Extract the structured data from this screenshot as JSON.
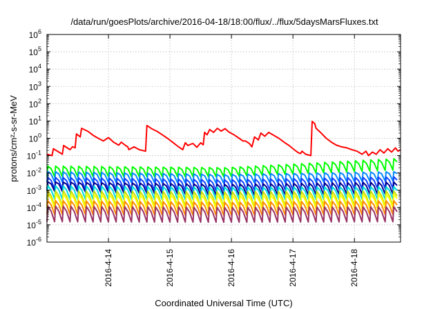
{
  "chart_data": {
    "type": "line",
    "title": "/data/run/goesPlots/archive/2016-04-18/18:00/flux/../flux/5daysMarsFluxes.txt",
    "xlabel": "Coordinated Universal Time (UTC)",
    "ylabel": "protons/cm²-s-sr-MeV",
    "yscale": "log",
    "xlim": [
      "2016-04-13 00:00",
      "2016-04-18 18:00"
    ],
    "ylim": [
      1e-06,
      1000000
    ],
    "x_ticks": [
      {
        "at": "2016-04-14 00:00",
        "label": "2016-4-14"
      },
      {
        "at": "2016-04-15 00:00",
        "label": "2016-4-15"
      },
      {
        "at": "2016-04-16 00:00",
        "label": "2016-4-16"
      },
      {
        "at": "2016-04-17 00:00",
        "label": "2016-4-17"
      },
      {
        "at": "2016-04-18 00:00",
        "label": "2016-4-18"
      }
    ],
    "y_ticks": [
      {
        "value": 1e-06,
        "base": "10",
        "exp": "-6"
      },
      {
        "value": 1e-05,
        "base": "10",
        "exp": "-5"
      },
      {
        "value": 0.0001,
        "base": "10",
        "exp": "-4"
      },
      {
        "value": 0.001,
        "base": "10",
        "exp": "-3"
      },
      {
        "value": 0.01,
        "base": "10",
        "exp": "-2"
      },
      {
        "value": 0.1,
        "base": "10",
        "exp": "-1"
      },
      {
        "value": 1,
        "base": "10",
        "exp": "0"
      },
      {
        "value": 10,
        "base": "10",
        "exp": "1"
      },
      {
        "value": 100,
        "base": "10",
        "exp": "2"
      },
      {
        "value": 1000,
        "base": "10",
        "exp": "3"
      },
      {
        "value": 10000,
        "base": "10",
        "exp": "4"
      },
      {
        "value": 100000,
        "base": "10",
        "exp": "5"
      },
      {
        "value": 1000000,
        "base": "10",
        "exp": "6"
      }
    ],
    "grid": true,
    "legend": "none",
    "series": [
      {
        "color": "#ff0000",
        "points": [
          [
            "2016-04-13 00:00",
            0.12
          ],
          [
            "2016-04-13 02:00",
            0.1
          ],
          [
            "2016-04-13 02:30",
            0.25
          ],
          [
            "2016-04-13 06:00",
            0.12
          ],
          [
            "2016-04-13 06:30",
            0.38
          ],
          [
            "2016-04-13 09:00",
            0.22
          ],
          [
            "2016-04-13 10:00",
            0.33
          ],
          [
            "2016-04-13 11:00",
            0.28
          ],
          [
            "2016-04-13 11:30",
            1.8
          ],
          [
            "2016-04-13 13:00",
            1.2
          ],
          [
            "2016-04-13 13:30",
            3.8
          ],
          [
            "2016-04-13 16:00",
            2.5
          ],
          [
            "2016-04-13 18:00",
            1.5
          ],
          [
            "2016-04-13 20:00",
            1.0
          ],
          [
            "2016-04-13 22:00",
            0.7
          ],
          [
            "2016-04-14 00:00",
            1.1
          ],
          [
            "2016-04-14 02:00",
            0.6
          ],
          [
            "2016-04-14 04:00",
            0.4
          ],
          [
            "2016-04-14 05:00",
            0.6
          ],
          [
            "2016-04-14 06:30",
            0.4
          ],
          [
            "2016-04-14 07:30",
            0.32
          ],
          [
            "2016-04-14 08:00",
            0.22
          ],
          [
            "2016-04-14 10:00",
            0.32
          ],
          [
            "2016-04-14 12:00",
            0.22
          ],
          [
            "2016-04-14 14:30",
            0.18
          ],
          [
            "2016-04-14 15:00",
            5.5
          ],
          [
            "2016-04-14 17:00",
            3.5
          ],
          [
            "2016-04-14 19:00",
            2.5
          ],
          [
            "2016-04-14 21:00",
            1.6
          ],
          [
            "2016-04-14 23:00",
            1.0
          ],
          [
            "2016-04-15 01:00",
            0.6
          ],
          [
            "2016-04-15 03:00",
            0.35
          ],
          [
            "2016-04-15 05:00",
            0.22
          ],
          [
            "2016-04-15 06:00",
            0.55
          ],
          [
            "2016-04-15 07:00",
            0.38
          ],
          [
            "2016-04-15 08:00",
            0.45
          ],
          [
            "2016-04-15 09:00",
            0.5
          ],
          [
            "2016-04-15 10:30",
            0.3
          ],
          [
            "2016-04-15 12:00",
            0.55
          ],
          [
            "2016-04-15 13:00",
            0.42
          ],
          [
            "2016-04-15 13:30",
            2.2
          ],
          [
            "2016-04-15 14:30",
            1.6
          ],
          [
            "2016-04-15 15:30",
            3.2
          ],
          [
            "2016-04-15 17:00",
            2.2
          ],
          [
            "2016-04-15 18:30",
            3.8
          ],
          [
            "2016-04-15 20:00",
            2.6
          ],
          [
            "2016-04-15 21:30",
            3.6
          ],
          [
            "2016-04-15 23:00",
            2.3
          ],
          [
            "2016-04-16 01:00",
            1.6
          ],
          [
            "2016-04-16 03:00",
            1.0
          ],
          [
            "2016-04-16 04:30",
            0.7
          ],
          [
            "2016-04-16 05:30",
            0.7
          ],
          [
            "2016-04-16 07:00",
            0.5
          ],
          [
            "2016-04-16 08:00",
            0.32
          ],
          [
            "2016-04-16 09:00",
            1.2
          ],
          [
            "2016-04-16 10:30",
            0.8
          ],
          [
            "2016-04-16 11:30",
            2.0
          ],
          [
            "2016-04-16 13:00",
            1.3
          ],
          [
            "2016-04-16 14:30",
            2.2
          ],
          [
            "2016-04-16 16:30",
            1.5
          ],
          [
            "2016-04-16 18:30",
            1.0
          ],
          [
            "2016-04-16 20:30",
            0.6
          ],
          [
            "2016-04-16 22:30",
            0.38
          ],
          [
            "2016-04-17 00:30",
            0.22
          ],
          [
            "2016-04-17 02:00",
            0.15
          ],
          [
            "2016-04-17 03:00",
            0.13
          ],
          [
            "2016-04-17 03:30",
            0.18
          ],
          [
            "2016-04-17 05:00",
            0.12
          ],
          [
            "2016-04-17 07:00",
            0.1
          ],
          [
            "2016-04-17 07:30",
            9.5
          ],
          [
            "2016-04-17 08:30",
            7.0
          ],
          [
            "2016-04-17 09:00",
            3.8
          ],
          [
            "2016-04-17 11:00",
            2.0
          ],
          [
            "2016-04-17 13:00",
            1.0
          ],
          [
            "2016-04-17 15:00",
            0.6
          ],
          [
            "2016-04-17 17:00",
            0.4
          ],
          [
            "2016-04-17 19:00",
            0.32
          ],
          [
            "2016-04-17 21:00",
            0.28
          ],
          [
            "2016-04-17 23:00",
            0.22
          ],
          [
            "2016-04-18 01:00",
            0.18
          ],
          [
            "2016-04-18 03:00",
            0.12
          ],
          [
            "2016-04-18 04:30",
            0.18
          ],
          [
            "2016-04-18 05:30",
            0.1
          ],
          [
            "2016-04-18 07:00",
            0.16
          ],
          [
            "2016-04-18 08:30",
            0.12
          ],
          [
            "2016-04-18 10:00",
            0.22
          ],
          [
            "2016-04-18 11:30",
            0.14
          ],
          [
            "2016-04-18 13:00",
            0.25
          ],
          [
            "2016-04-18 14:30",
            0.16
          ],
          [
            "2016-04-18 16:00",
            0.28
          ],
          [
            "2016-04-18 17:00",
            0.18
          ],
          [
            "2016-04-18 18:00",
            0.22
          ]
        ]
      },
      {
        "color": "#00ff00",
        "periodic": {
          "start": "2016-04-13 00:00",
          "period_hours": 3,
          "low": [
            0.006,
            0.006,
            0.015
          ],
          "high": [
            0.025,
            0.02,
            0.07
          ]
        }
      },
      {
        "color": "#0088ff",
        "periodic": {
          "start": "2016-04-13 00:00",
          "period_hours": 3,
          "low": [
            0.003,
            0.0025,
            0.0035
          ],
          "high": [
            0.012,
            0.008,
            0.012
          ]
        }
      },
      {
        "color": "#1040ff",
        "periodic": {
          "start": "2016-04-13 00:00",
          "period_hours": 3,
          "low": [
            0.0012,
            0.0009,
            0.0013
          ],
          "high": [
            0.0055,
            0.004,
            0.006
          ]
        }
      },
      {
        "color": "#000090",
        "periodic": {
          "start": "2016-04-13 00:00",
          "period_hours": 3,
          "low": [
            0.0009,
            0.0005,
            0.0006
          ],
          "high": [
            0.003,
            0.0022,
            0.003
          ]
        }
      },
      {
        "color": "#00dddd",
        "periodic": {
          "start": "2016-04-13 00:00",
          "period_hours": 3,
          "low": [
            0.0003,
            0.00028,
            0.0003
          ],
          "high": [
            0.0018,
            0.0015,
            0.0016
          ]
        }
      },
      {
        "color": "#ccdd00",
        "periodic": {
          "start": "2016-04-13 00:00",
          "period_hours": 3,
          "low": [
            0.00012,
            0.00011,
            0.00012
          ],
          "high": [
            0.0009,
            0.0008,
            0.0009
          ]
        }
      },
      {
        "color": "#ffff00",
        "periodic": {
          "start": "2016-04-13 00:00",
          "period_hours": 3,
          "low": [
            9e-05,
            8e-05,
            9e-05
          ],
          "high": [
            0.0006,
            0.0005,
            0.0006
          ]
        }
      },
      {
        "color": "#ff8800",
        "periodic": {
          "start": "2016-04-13 00:00",
          "period_hours": 3,
          "low": [
            4e-05,
            3.5e-05,
            4e-05
          ],
          "high": [
            0.00025,
            0.0002,
            0.00025
          ]
        }
      },
      {
        "color": "#993366",
        "periodic": {
          "start": "2016-04-13 00:00",
          "period_hours": 3,
          "low": [
            1.5e-05,
            1.4e-05,
            1.5e-05
          ],
          "high": [
            0.00012,
            0.0001,
            0.00011
          ]
        }
      }
    ]
  }
}
